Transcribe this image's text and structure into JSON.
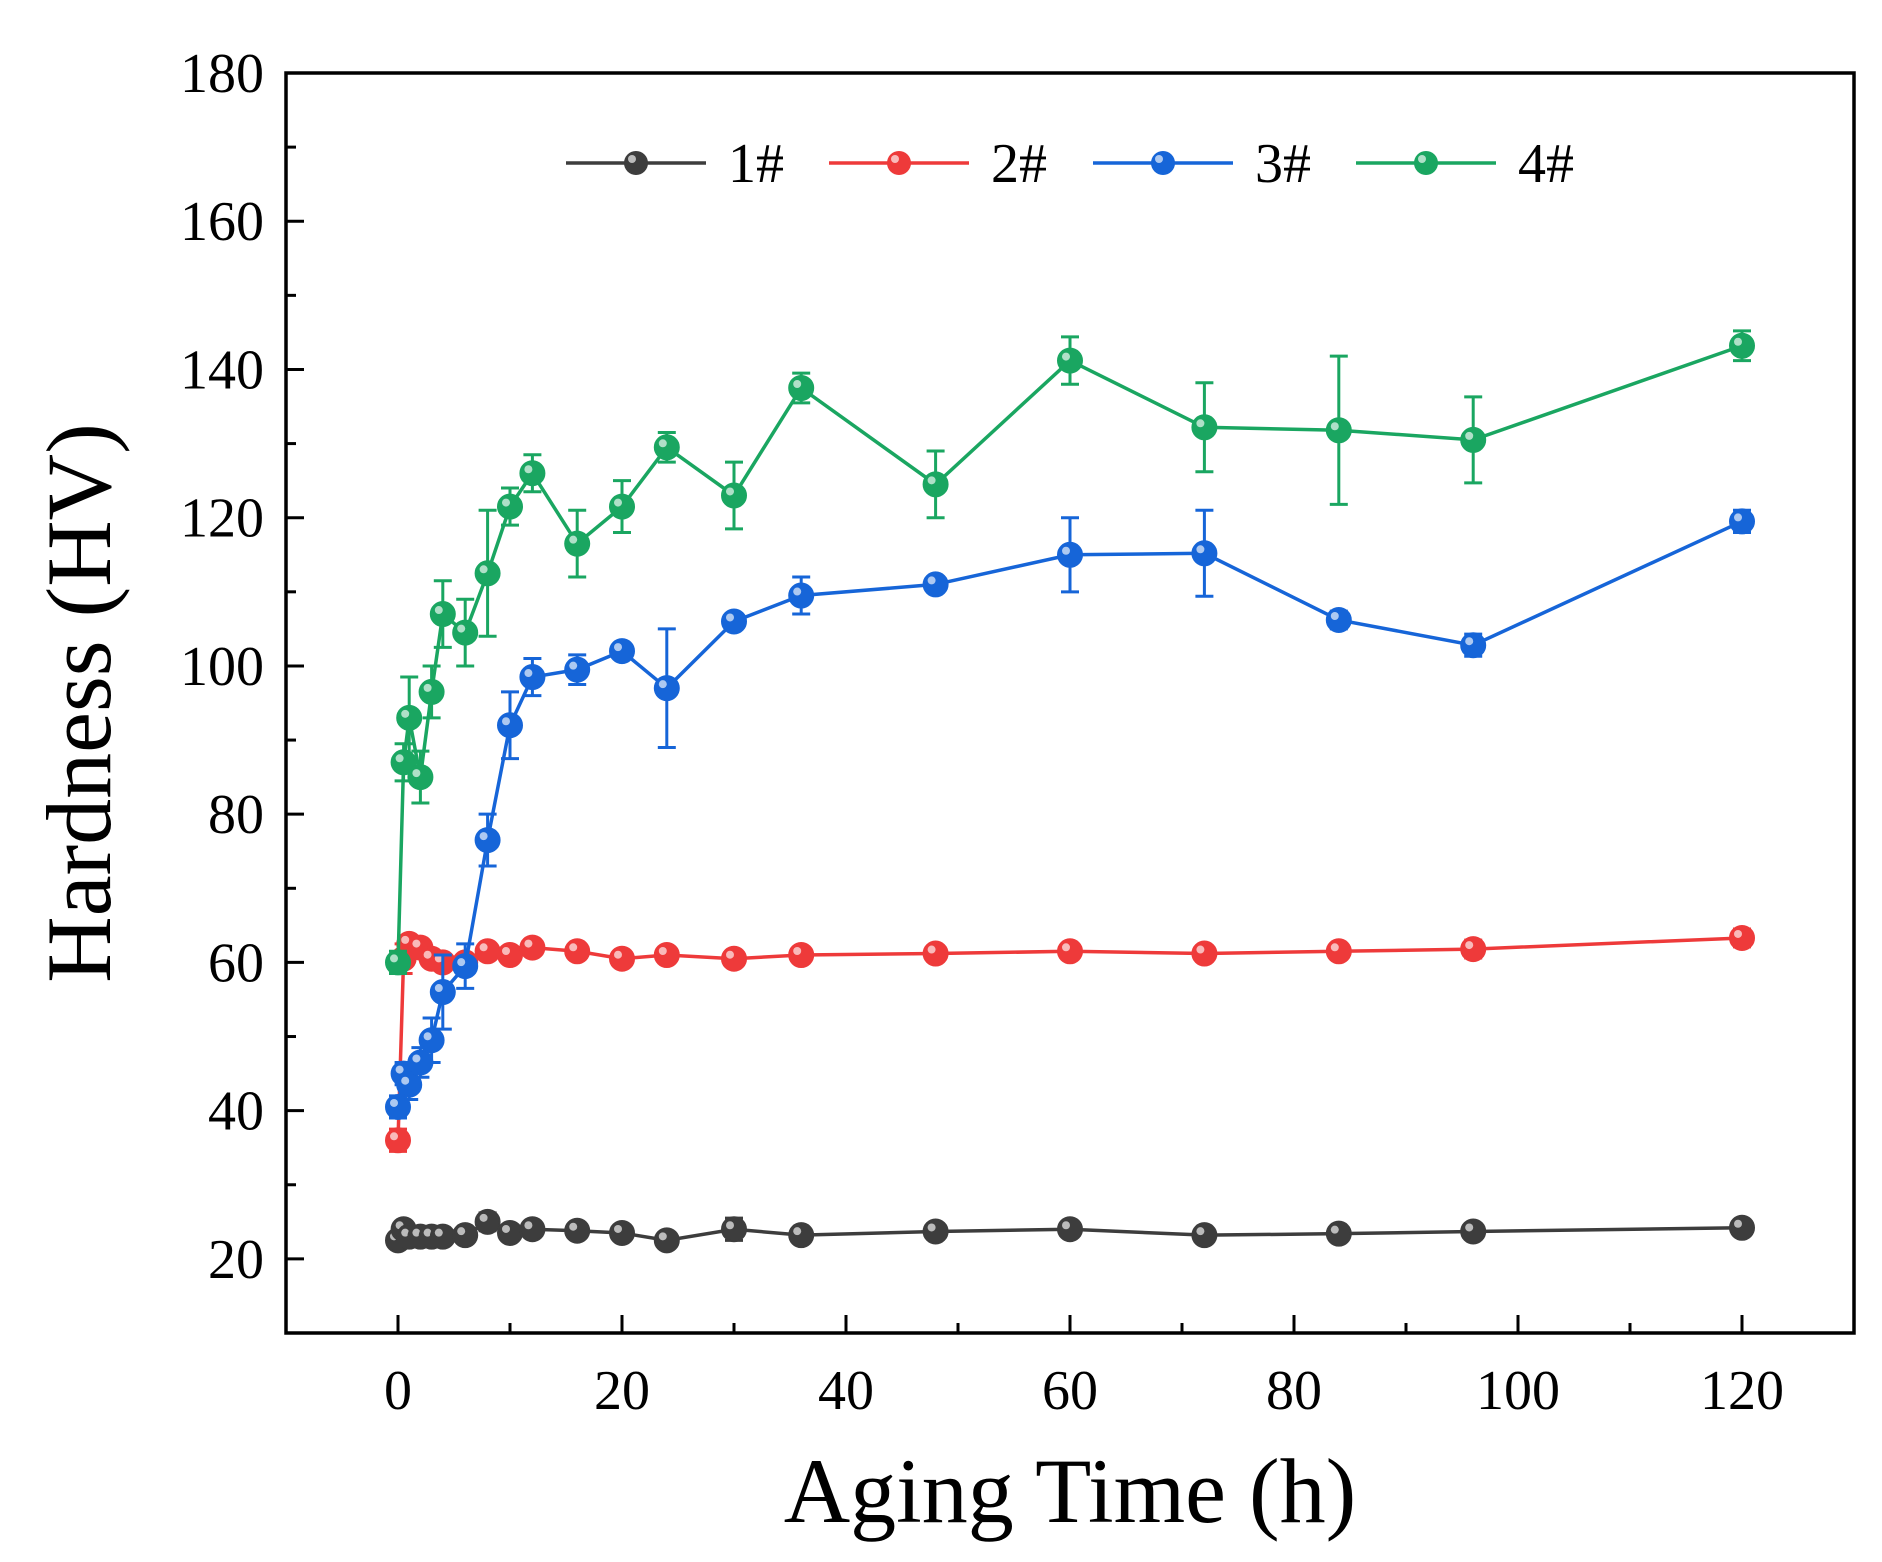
{
  "chart_data": {
    "type": "line",
    "title": "",
    "xlabel": "Aging Time (h)",
    "ylabel": "Hardness (HV)",
    "xlim": [
      -10,
      130
    ],
    "ylim": [
      10,
      180
    ],
    "xticks": [
      0,
      20,
      40,
      60,
      80,
      100,
      120
    ],
    "yticks": [
      20,
      40,
      60,
      80,
      100,
      120,
      140,
      160,
      180
    ],
    "xtick_labels": [
      "0",
      "20",
      "40",
      "60",
      "80",
      "100",
      "120"
    ],
    "ytick_labels": [
      "20",
      "40",
      "60",
      "80",
      "100",
      "120",
      "140",
      "160",
      "180"
    ],
    "grid": false,
    "legend_position": "top-center",
    "x": [
      0,
      0.5,
      1,
      2,
      3,
      4,
      6,
      8,
      10,
      12,
      16,
      20,
      24,
      30,
      36,
      48,
      60,
      72,
      84,
      96,
      120
    ],
    "series": [
      {
        "name": "1#",
        "color": "#3d3d3d",
        "values": [
          22.5,
          24,
          23,
          23,
          23,
          23,
          23.2,
          25,
          23.5,
          24,
          23.8,
          23.5,
          22.5,
          24,
          23.2,
          23.7,
          24,
          23.2,
          23.4,
          23.7,
          24.2
        ],
        "errors": [
          0.8,
          0.8,
          0.8,
          0.8,
          0.8,
          0.8,
          0.8,
          1.2,
          0.8,
          1,
          0.8,
          0.8,
          1,
          1.5,
          0.8,
          0.8,
          1,
          0.8,
          0.8,
          0.8,
          0.8
        ]
      },
      {
        "name": "2#",
        "color": "#ee3a3a",
        "values": [
          36,
          60.5,
          62.5,
          62,
          60.5,
          60,
          60,
          61.5,
          61,
          62,
          61.5,
          60.5,
          61,
          60.5,
          61,
          61.2,
          61.5,
          61.2,
          61.5,
          61.8,
          63.3
        ],
        "errors": [
          1.5,
          2,
          1,
          1,
          1,
          1,
          1,
          1,
          1,
          1,
          1,
          1,
          1,
          1,
          1,
          1,
          1,
          1,
          1,
          1.2,
          1.2
        ]
      },
      {
        "name": "3#",
        "color": "#1665d8",
        "values": [
          40.5,
          45,
          43.5,
          46.5,
          49.5,
          56,
          59.5,
          76.5,
          92,
          98.5,
          99.5,
          102,
          97,
          106,
          109.5,
          111,
          115,
          115.2,
          106.2,
          102.8,
          119.5
        ],
        "errors": [
          1.5,
          1.5,
          2,
          2,
          3,
          5,
          3,
          3.5,
          4.5,
          2.5,
          2,
          1,
          8,
          1,
          2.5,
          1,
          5,
          5.8,
          1.2,
          1.5,
          1.5
        ]
      },
      {
        "name": "4#",
        "color": "#1aa661",
        "values": [
          60,
          87,
          93,
          85,
          96.5,
          107,
          104.5,
          112.5,
          121.5,
          126,
          116.5,
          121.5,
          129.5,
          123,
          137.5,
          124.5,
          141.2,
          132.2,
          131.8,
          130.5,
          143.2
        ],
        "errors": [
          1.5,
          2.5,
          5.5,
          3.5,
          3.5,
          4.5,
          4.5,
          8.5,
          2.5,
          2.5,
          4.5,
          3.5,
          2,
          4.5,
          2,
          4.5,
          3.2,
          6,
          10,
          5.8,
          2
        ]
      }
    ]
  }
}
